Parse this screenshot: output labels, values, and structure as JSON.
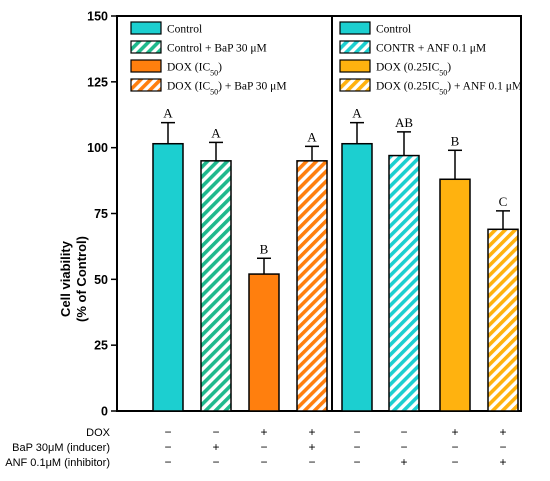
{
  "chart_data": {
    "type": "bar",
    "ylabel_line1": "Cell viability",
    "ylabel_line2": "(% of Control)",
    "ylim": [
      0,
      150
    ],
    "yticks": [
      "0",
      "25",
      "50",
      "75",
      "100",
      "125",
      "150"
    ],
    "grid": false,
    "colors": {
      "control": "#1ccfd0",
      "bap": "#1fb98d",
      "dox": "#ff7f0e",
      "anf_dox": "#ffb20f"
    },
    "bars": [
      {
        "name": "Control",
        "value": 101.5,
        "error": 8,
        "letter": "A",
        "color_key": "control",
        "hatch": false
      },
      {
        "name": "Control + BaP 30 μM",
        "value": 95,
        "error": 7,
        "letter": "A",
        "color_key": "bap",
        "hatch": true
      },
      {
        "name": "DOX (IC50)",
        "value": 52,
        "error": 6,
        "letter": "B",
        "color_key": "dox",
        "hatch": false
      },
      {
        "name": "DOX (IC50) + BaP 30 μM",
        "value": 95,
        "error": 5.5,
        "letter": "A",
        "color_key": "dox",
        "hatch": true
      },
      {
        "name": "Control",
        "value": 101.5,
        "error": 8,
        "letter": "A",
        "color_key": "control",
        "hatch": false
      },
      {
        "name": "CONTR + ANF 0.1 μM",
        "value": 97,
        "error": 9,
        "letter": "AB",
        "color_key": "control",
        "hatch": true
      },
      {
        "name": "DOX (0.25IC50)",
        "value": 88,
        "error": 11,
        "letter": "B",
        "color_key": "anf_dox",
        "hatch": false
      },
      {
        "name": "DOX (0.25IC50) + ANF 0.1 μM",
        "value": 69,
        "error": 7,
        "letter": "C",
        "color_key": "anf_dox",
        "hatch": true
      }
    ],
    "legend_left": [
      {
        "text": "Control",
        "sub": "",
        "after": "",
        "color_key": "control",
        "hatch": false
      },
      {
        "text": "Control + BaP 30 μM",
        "sub": "",
        "after": "",
        "color_key": "bap",
        "hatch": true
      },
      {
        "text": "DOX (IC",
        "sub": "50",
        "after": ")",
        "color_key": "dox",
        "hatch": false
      },
      {
        "text": "DOX (IC",
        "sub": "50",
        "after": ") + BaP 30 μM",
        "color_key": "dox",
        "hatch": true
      }
    ],
    "legend_right": [
      {
        "text": "Control",
        "sub": "",
        "after": "",
        "color_key": "control",
        "hatch": false
      },
      {
        "text": "CONTR + ANF 0.1 μM",
        "sub": "",
        "after": "",
        "color_key": "control",
        "hatch": true
      },
      {
        "text": "DOX (0.25IC",
        "sub": "50",
        "after": ")",
        "color_key": "anf_dox",
        "hatch": false
      },
      {
        "text": "DOX (0.25IC",
        "sub": "50",
        "after": ") + ANF 0.1 μM",
        "color_key": "anf_dox",
        "hatch": true
      }
    ],
    "treatment_rows": [
      {
        "label": "DOX",
        "signs": [
          "−",
          "−",
          "+",
          "+",
          "−",
          "−",
          "+",
          "+"
        ]
      },
      {
        "label": "BaP 30μM (inducer)",
        "signs": [
          "−",
          "+",
          "−",
          "+",
          "−",
          "−",
          "−",
          "−"
        ]
      },
      {
        "label": "ANF 0.1μM (inhibitor)",
        "signs": [
          "−",
          "−",
          "−",
          "−",
          "−",
          "+",
          "−",
          "+"
        ]
      }
    ]
  }
}
